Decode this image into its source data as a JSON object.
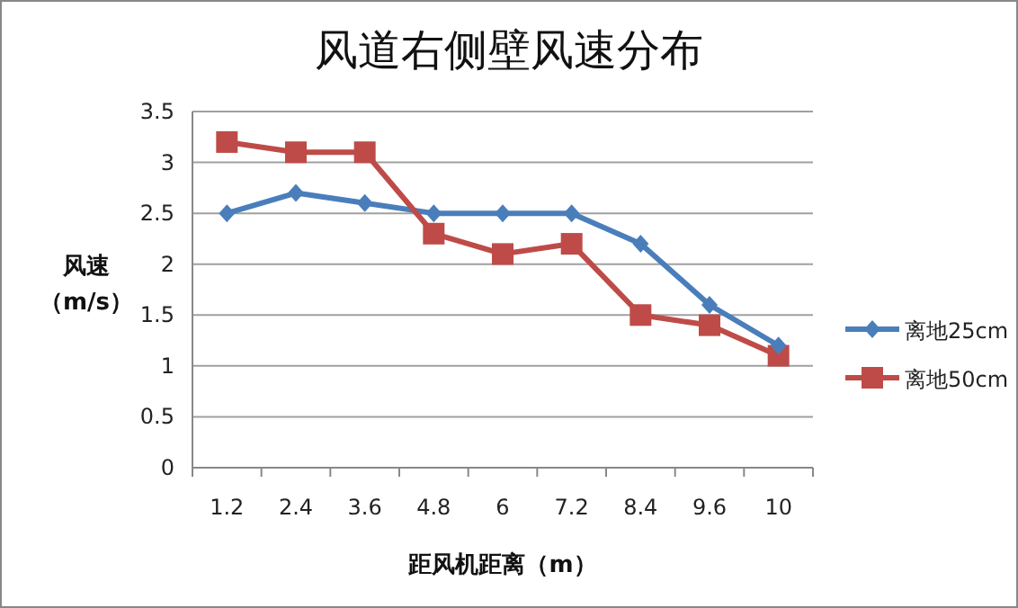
{
  "chart_data": {
    "type": "line",
    "title": "风道右侧壁风速分布",
    "xlabel": "距风机距离（m）",
    "ylabel": "风速（m/s）",
    "categories": [
      "1.2",
      "2.4",
      "3.6",
      "4.8",
      "6",
      "7.2",
      "8.4",
      "9.6",
      "10"
    ],
    "series": [
      {
        "name": "离地25cm",
        "color": "#4a7ebb",
        "marker": "diamond",
        "values": [
          2.5,
          2.7,
          2.6,
          2.5,
          2.5,
          2.5,
          2.2,
          1.6,
          1.2
        ]
      },
      {
        "name": "离地50cm",
        "color": "#be4b48",
        "marker": "square",
        "values": [
          3.2,
          3.1,
          3.1,
          2.3,
          2.1,
          2.2,
          1.5,
          1.4,
          1.1
        ]
      }
    ],
    "ylim": [
      0,
      3.5
    ],
    "yticks": [
      0,
      0.5,
      1,
      1.5,
      2,
      2.5,
      3,
      3.5
    ],
    "grid": "y",
    "legend": "right",
    "line_style": "solid"
  }
}
